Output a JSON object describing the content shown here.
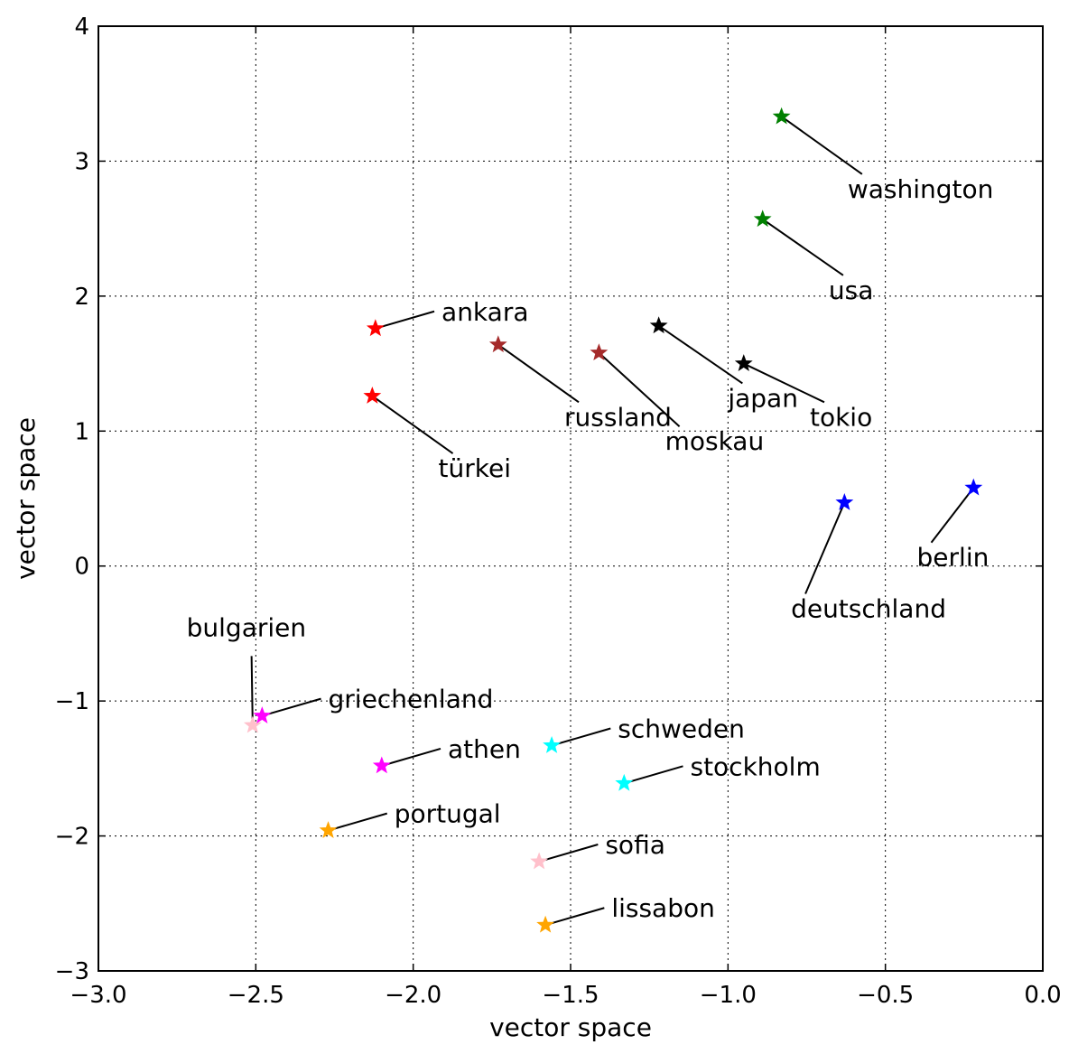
{
  "chart_data": {
    "type": "scatter",
    "title": "",
    "xlabel": "vector space",
    "ylabel": "vector space",
    "xlim": [
      -3.0,
      0.0
    ],
    "ylim": [
      -3,
      4
    ],
    "grid": true,
    "marker": "star",
    "x_ticks": [
      "−3.0",
      "−2.5",
      "−2.0",
      "−1.5",
      "−1.0",
      "−0.5",
      "0.0"
    ],
    "y_ticks": [
      "−3",
      "−2",
      "−1",
      "0",
      "1",
      "2",
      "3",
      "4"
    ],
    "points": [
      {
        "label": "washington",
        "x": -0.83,
        "y": 3.33,
        "color": "#008000",
        "label_x": -0.62,
        "label_y": 2.73
      },
      {
        "label": "usa",
        "x": -0.89,
        "y": 2.57,
        "color": "#008000",
        "label_x": -0.68,
        "label_y": 1.98
      },
      {
        "label": "ankara",
        "x": -2.12,
        "y": 1.76,
        "color": "#ff0000",
        "label_x": -1.91,
        "label_y": 1.82
      },
      {
        "label": "türkei",
        "x": -2.13,
        "y": 1.26,
        "color": "#ff0000",
        "label_x": -1.92,
        "label_y": 0.66
      },
      {
        "label": "russland",
        "x": -1.73,
        "y": 1.64,
        "color": "#a52a2a",
        "label_x": -1.52,
        "label_y": 1.04
      },
      {
        "label": "moskau",
        "x": -1.41,
        "y": 1.58,
        "color": "#a52a2a",
        "label_x": -1.2,
        "label_y": 0.86
      },
      {
        "label": "japan",
        "x": -1.22,
        "y": 1.78,
        "color": "#000000",
        "label_x": -1.0,
        "label_y": 1.18
      },
      {
        "label": "tokio",
        "x": -0.95,
        "y": 1.5,
        "color": "#000000",
        "label_x": -0.74,
        "label_y": 1.04
      },
      {
        "label": "deutschland",
        "x": -0.63,
        "y": 0.47,
        "color": "#0000ff",
        "label_x": -0.8,
        "label_y": -0.38
      },
      {
        "label": "berlin",
        "x": -0.22,
        "y": 0.58,
        "color": "#0000ff",
        "label_x": -0.4,
        "label_y": 0.0
      },
      {
        "label": "bulgarien",
        "x": -2.51,
        "y": -1.18,
        "color": "#ffc0cb",
        "label_x": -2.72,
        "label_y": -0.52
      },
      {
        "label": "griechenland",
        "x": -2.48,
        "y": -1.11,
        "color": "#ff00ff",
        "label_x": -2.27,
        "label_y": -1.05
      },
      {
        "label": "schweden",
        "x": -1.56,
        "y": -1.33,
        "color": "#00ffff",
        "label_x": -1.35,
        "label_y": -1.27
      },
      {
        "label": "athen",
        "x": -2.1,
        "y": -1.48,
        "color": "#ff00ff",
        "label_x": -1.89,
        "label_y": -1.42
      },
      {
        "label": "stockholm",
        "x": -1.33,
        "y": -1.61,
        "color": "#00ffff",
        "label_x": -1.12,
        "label_y": -1.55
      },
      {
        "label": "portugal",
        "x": -2.27,
        "y": -1.96,
        "color": "#ffa500",
        "label_x": -2.06,
        "label_y": -1.9
      },
      {
        "label": "sofia",
        "x": -1.6,
        "y": -2.19,
        "color": "#ffc0cb",
        "label_x": -1.39,
        "label_y": -2.13
      },
      {
        "label": "lissabon",
        "x": -1.58,
        "y": -2.66,
        "color": "#ffa500",
        "label_x": -1.37,
        "label_y": -2.6
      }
    ]
  }
}
